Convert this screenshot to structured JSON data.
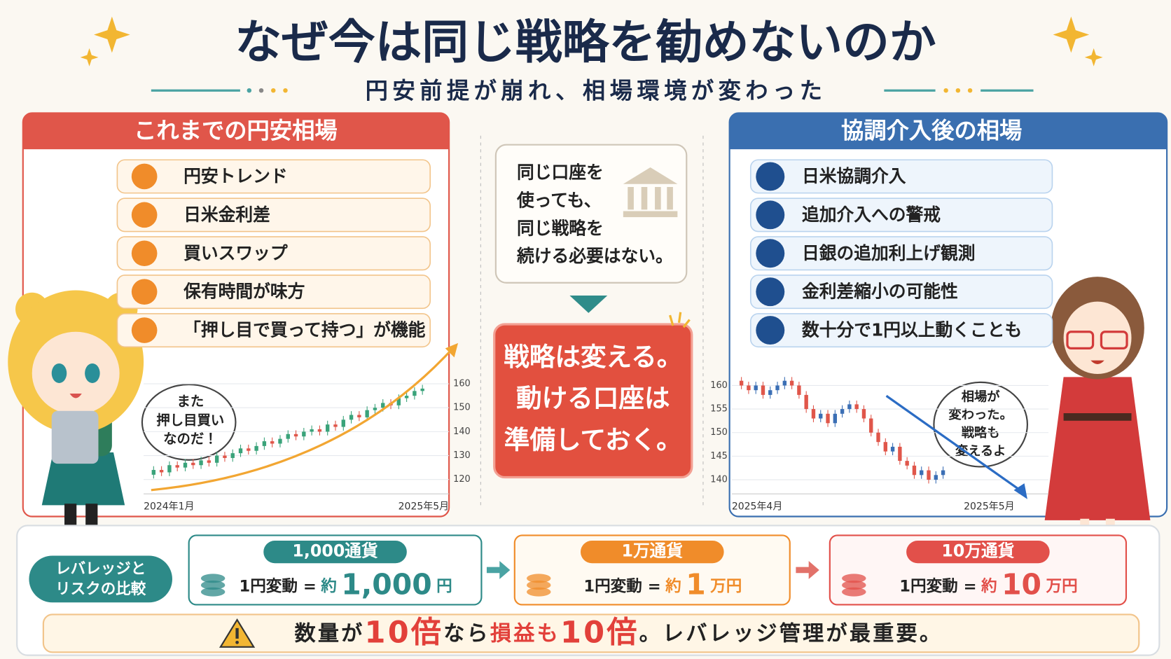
{
  "header": {
    "title": "なぜ今は同じ戦略を勧めないのか",
    "subtitle": "円安前提が崩れ、相場環境が変わった"
  },
  "left_panel": {
    "title": "これまでの円安相場",
    "items": [
      "円安トレンド",
      "日米金利差",
      "買いスワップ",
      "保有時間が味方",
      "「押し目で買って持つ」が機能"
    ],
    "speech": [
      "また",
      "押し目買い",
      "なのだ！"
    ]
  },
  "center": {
    "note": [
      "同じ口座を",
      "使っても、",
      "同じ戦略を",
      "続ける必要はない。"
    ],
    "conclusion": [
      "戦略は変える。",
      "動ける口座は",
      "準備しておく。"
    ]
  },
  "right_panel": {
    "title": "協調介入後の相場",
    "items": [
      "日米協調介入",
      "追加介入への警戒",
      "日銀の追加利上げ観測",
      "金利差縮小の可能性",
      "数十分で1円以上動くことも"
    ],
    "speech": [
      "相場が",
      "変わった。",
      "戦略も",
      "変えるよ"
    ]
  },
  "chart_data": [
    {
      "type": "candlestick",
      "x_labels": [
        "2024年1月",
        "2025年5月"
      ],
      "values": [
        122,
        124,
        123,
        126,
        125,
        127,
        126,
        128,
        127,
        130,
        129,
        131,
        133,
        132,
        134,
        136,
        135,
        137,
        139,
        138,
        140,
        141,
        140,
        143,
        142,
        145,
        147,
        146,
        149,
        150,
        152,
        151,
        154,
        155,
        157,
        158
      ],
      "up_color": "#3aa37a",
      "down_color": "#e0564a",
      "ylim": [
        114,
        166
      ],
      "yticks": [
        160,
        150,
        140,
        130,
        120
      ],
      "grid": true
    },
    {
      "type": "candlestick",
      "x_labels": [
        "2025年4月",
        "2025年5月"
      ],
      "values": [
        161,
        160,
        159,
        160,
        158,
        159,
        160,
        161,
        160,
        158,
        155,
        153,
        154,
        152,
        154,
        155,
        156,
        155,
        153,
        150,
        148,
        146,
        147,
        144,
        143,
        141,
        142,
        140,
        141,
        142
      ],
      "up_color": "#3b6fb5",
      "down_color": "#e0564a",
      "ylim": [
        137,
        165
      ],
      "yticks": [
        160,
        155,
        150,
        145,
        140
      ],
      "grid": true
    }
  ],
  "comparison": {
    "label": [
      "レバレッジと",
      "リスクの比較"
    ],
    "cards": [
      {
        "title": "1,000通貨",
        "prefix": "1円変動 =",
        "approx": "約",
        "amount": "1,000",
        "unit": "円"
      },
      {
        "title": "1万通貨",
        "prefix": "1円変動 =",
        "approx": "約",
        "amount": "1",
        "unit": "万円"
      },
      {
        "title": "10万通貨",
        "prefix": "1円変動 =",
        "approx": "約",
        "amount": "10",
        "unit": "万円"
      }
    ],
    "warning": [
      "数量が",
      "10倍",
      "なら",
      "損益も",
      "10倍",
      "。レバレッジ管理が最重要。"
    ]
  }
}
